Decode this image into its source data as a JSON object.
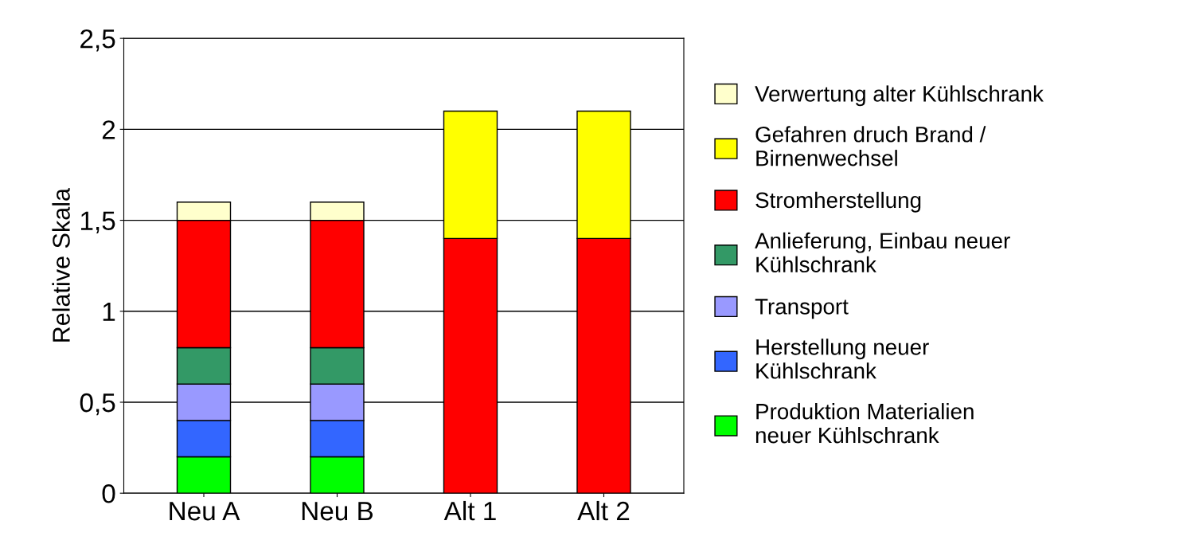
{
  "chart_data": {
    "type": "bar",
    "stacked": true,
    "ylabel": "Relative Skala",
    "categories": [
      "Neu A",
      "Neu B",
      "Alt 1",
      "Alt 2"
    ],
    "series": [
      {
        "name": "Produktion Materialien\nneuer Kühlschrank",
        "color": "#00ff00",
        "values": [
          0.2,
          0.2,
          0,
          0
        ]
      },
      {
        "name": "Herstellung neuer\nKühlschrank",
        "color": "#3366ff",
        "values": [
          0.2,
          0.2,
          0,
          0
        ]
      },
      {
        "name": "Transport",
        "color": "#9999ff",
        "values": [
          0.2,
          0.2,
          0,
          0
        ]
      },
      {
        "name": "Anlieferung, Einbau neuer\nKühlschrank",
        "color": "#339966",
        "values": [
          0.2,
          0.2,
          0,
          0
        ]
      },
      {
        "name": "Stromherstellung",
        "color": "#ff0000",
        "values": [
          0.7,
          0.7,
          1.4,
          1.4
        ]
      },
      {
        "name": "Gefahren druch Brand /\nBirnenwechsel",
        "color": "#ffff00",
        "values": [
          0,
          0,
          0.7,
          0.7
        ]
      },
      {
        "name": "Verwertung alter Kühlschrank",
        "color": "#ffffcc",
        "values": [
          0.1,
          0.1,
          0,
          0
        ]
      }
    ],
    "ylim": [
      0,
      2.5
    ],
    "yticks": [
      0,
      {
        "value": 0.5,
        "label": "0,5"
      },
      1,
      {
        "value": 1.5,
        "label": "1,5"
      },
      2,
      {
        "value": 2.5,
        "label": "2,5"
      }
    ],
    "grid": "y",
    "legend": "right"
  }
}
